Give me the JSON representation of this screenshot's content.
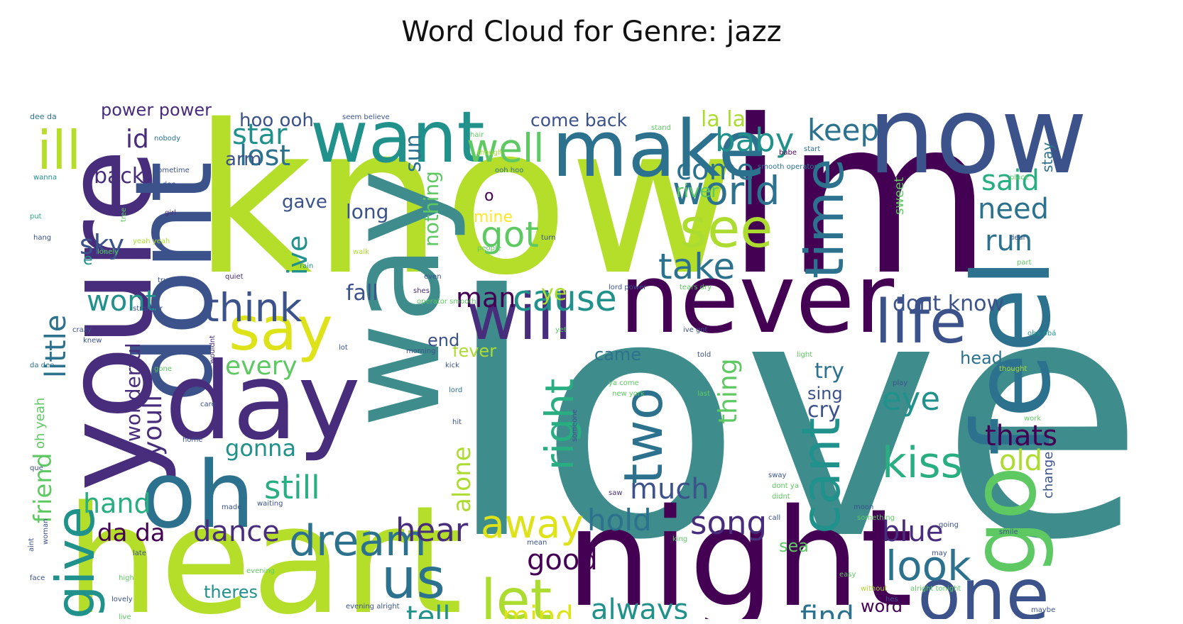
{
  "chart_data": {
    "type": "wordcloud",
    "title": "Word Cloud for Genre: jazz",
    "palette": [
      "#440154",
      "#472d7b",
      "#3b528b",
      "#2c728e",
      "#21918c",
      "#28ae80",
      "#5ec962",
      "#addc30",
      "#fde725"
    ],
    "words": [
      {
        "text": "love",
        "weight": 100,
        "color": "#3e8c8c"
      },
      {
        "text": "know",
        "weight": 72,
        "color": "#b5de2b"
      },
      {
        "text": "im",
        "weight": 68,
        "color": "#440154"
      },
      {
        "text": "heart",
        "weight": 52,
        "color": "#b5de2b"
      },
      {
        "text": "night",
        "weight": 48,
        "color": "#440154"
      },
      {
        "text": "way",
        "weight": 45,
        "color": "#3e8c8c"
      },
      {
        "text": "youre",
        "weight": 42,
        "color": "#472d7b"
      },
      {
        "text": "now",
        "weight": 38,
        "color": "#3b528b"
      },
      {
        "text": "dont",
        "weight": 37,
        "color": "#3b528b"
      },
      {
        "text": "day",
        "weight": 36,
        "color": "#472d7b"
      },
      {
        "text": "feel",
        "weight": 34,
        "color": "#2c728e"
      },
      {
        "text": "never",
        "weight": 32,
        "color": "#440154"
      },
      {
        "text": "oh",
        "weight": 30,
        "color": "#2c728e"
      },
      {
        "text": "go",
        "weight": 29,
        "color": "#5ec962"
      },
      {
        "text": "make",
        "weight": 27,
        "color": "#2c728e"
      },
      {
        "text": "want",
        "weight": 26,
        "color": "#21918c"
      },
      {
        "text": "one",
        "weight": 24,
        "color": "#3b528b"
      },
      {
        "text": "will",
        "weight": 22,
        "color": "#472d7b"
      },
      {
        "text": "life",
        "weight": 21,
        "color": "#3b528b"
      },
      {
        "text": "say",
        "weight": 21,
        "color": "#dde318"
      },
      {
        "text": "see",
        "weight": 20,
        "color": "#addc30"
      },
      {
        "text": "time",
        "weight": 20,
        "color": "#2c728e"
      },
      {
        "text": "cant",
        "weight": 20,
        "color": "#21918c"
      },
      {
        "text": "two",
        "weight": 20,
        "color": "#2c728e"
      },
      {
        "text": "us",
        "weight": 19,
        "color": "#2c728e"
      },
      {
        "text": "let",
        "weight": 19,
        "color": "#addc30"
      },
      {
        "text": "give",
        "weight": 18,
        "color": "#21918c"
      },
      {
        "text": "ill",
        "weight": 18,
        "color": "#b5de2b"
      },
      {
        "text": "kiss",
        "weight": 17,
        "color": "#28ae80"
      },
      {
        "text": "dream",
        "weight": 17,
        "color": "#2c728e"
      },
      {
        "text": "look",
        "weight": 16,
        "color": "#2c728e"
      },
      {
        "text": "world",
        "weight": 15,
        "color": "#2c728e"
      },
      {
        "text": "think",
        "weight": 15,
        "color": "#3b528b"
      },
      {
        "text": "well",
        "weight": 15,
        "color": "#5ec962"
      },
      {
        "text": "right",
        "weight": 15,
        "color": "#28ae80"
      },
      {
        "text": "away",
        "weight": 14,
        "color": "#dde318"
      },
      {
        "text": "cause",
        "weight": 14,
        "color": "#21918c"
      },
      {
        "text": "take",
        "weight": 14,
        "color": "#2c728e"
      },
      {
        "text": "still",
        "weight": 13,
        "color": "#28ae80"
      },
      {
        "text": "got",
        "weight": 13,
        "color": "#5ec962"
      },
      {
        "text": "hear",
        "weight": 13,
        "color": "#472d7b"
      },
      {
        "text": "keep",
        "weight": 13,
        "color": "#2c728e"
      },
      {
        "text": "baby",
        "weight": 13,
        "color": "#21918c"
      },
      {
        "text": "eye",
        "weight": 13,
        "color": "#21918c"
      },
      {
        "text": "wont",
        "weight": 12,
        "color": "#21918c"
      },
      {
        "text": "dance",
        "weight": 12,
        "color": "#472d7b"
      },
      {
        "text": "song",
        "weight": 12,
        "color": "#472d7b"
      },
      {
        "text": "hold",
        "weight": 12,
        "color": "#2c728e"
      },
      {
        "text": "much",
        "weight": 12,
        "color": "#3b528b"
      },
      {
        "text": "always",
        "weight": 12,
        "color": "#21918c"
      },
      {
        "text": "blue",
        "weight": 12,
        "color": "#472d7b"
      },
      {
        "text": "good",
        "weight": 12,
        "color": "#440154"
      },
      {
        "text": "find",
        "weight": 11,
        "color": "#2c728e"
      },
      {
        "text": "tell",
        "weight": 11,
        "color": "#21918c"
      },
      {
        "text": "mind",
        "weight": 11,
        "color": "#dde318"
      },
      {
        "text": "little",
        "weight": 11,
        "color": "#2c728e"
      },
      {
        "text": "thats",
        "weight": 11,
        "color": "#440154"
      },
      {
        "text": "old",
        "weight": 11,
        "color": "#addc30"
      },
      {
        "text": "need",
        "weight": 11,
        "color": "#2c728e"
      },
      {
        "text": "said",
        "weight": 11,
        "color": "#28ae80"
      },
      {
        "text": "run",
        "weight": 11,
        "color": "#2c728e"
      },
      {
        "text": "lost",
        "weight": 11,
        "color": "#2c728e"
      },
      {
        "text": "star",
        "weight": 11,
        "color": "#21918c"
      },
      {
        "text": "come",
        "weight": 11,
        "color": "#2c728e"
      },
      {
        "text": "man",
        "weight": 11,
        "color": "#440154"
      },
      {
        "text": "ive",
        "weight": 10,
        "color": "#21918c"
      },
      {
        "text": "sky",
        "weight": 10,
        "color": "#3b528b"
      },
      {
        "text": "hand",
        "weight": 10,
        "color": "#28ae80"
      },
      {
        "text": "youll",
        "weight": 10,
        "color": "#472d7b"
      },
      {
        "text": "every",
        "weight": 10,
        "color": "#5ec962"
      },
      {
        "text": "thing",
        "weight": 10,
        "color": "#5ec962"
      },
      {
        "text": "alone",
        "weight": 10,
        "color": "#addc30"
      },
      {
        "text": "friend",
        "weight": 10,
        "color": "#5ec962"
      },
      {
        "text": "da da",
        "weight": 10,
        "color": "#440154"
      },
      {
        "text": "gonna",
        "weight": 9,
        "color": "#21918c"
      },
      {
        "text": "cry",
        "weight": 9,
        "color": "#3b528b"
      },
      {
        "text": "try",
        "weight": 9,
        "color": "#2c728e"
      },
      {
        "text": "id",
        "weight": 9,
        "color": "#472d7b"
      },
      {
        "text": "back",
        "weight": 9,
        "color": "#472d7b"
      },
      {
        "text": "wonderful",
        "weight": 9,
        "color": "#472d7b"
      },
      {
        "text": "dont know",
        "weight": 9,
        "color": "#3b528b"
      },
      {
        "text": "nothing",
        "weight": 9,
        "color": "#5ec962"
      },
      {
        "text": "sun",
        "weight": 9,
        "color": "#2c728e"
      },
      {
        "text": "fall",
        "weight": 9,
        "color": "#3b528b"
      },
      {
        "text": "ye",
        "weight": 9,
        "color": "#addc30"
      },
      {
        "text": "la la",
        "weight": 9,
        "color": "#addc30"
      },
      {
        "text": "long",
        "weight": 9,
        "color": "#3b528b"
      },
      {
        "text": "come back",
        "weight": 8,
        "color": "#3b528b"
      },
      {
        "text": "hoo ooh",
        "weight": 8,
        "color": "#3b528b"
      },
      {
        "text": "power power",
        "weight": 8,
        "color": "#472d7b"
      },
      {
        "text": "river",
        "weight": 8,
        "color": "#5ec962"
      },
      {
        "text": "gave",
        "weight": 8,
        "color": "#3b528b"
      },
      {
        "text": "arm",
        "weight": 8,
        "color": "#3b528b"
      },
      {
        "text": "came",
        "weight": 8,
        "color": "#2c728e"
      },
      {
        "text": "fever",
        "weight": 8,
        "color": "#addc30"
      },
      {
        "text": "end",
        "weight": 8,
        "color": "#3b528b"
      },
      {
        "text": "sing",
        "weight": 8,
        "color": "#3b528b"
      },
      {
        "text": "head",
        "weight": 8,
        "color": "#2c728e"
      },
      {
        "text": "word",
        "weight": 8,
        "color": "#440154"
      },
      {
        "text": "theres",
        "weight": 8,
        "color": "#21918c"
      },
      {
        "text": "sea",
        "weight": 7,
        "color": "#5ec962"
      },
      {
        "text": "o",
        "weight": 7,
        "color": "#440154"
      },
      {
        "text": "mine",
        "weight": 7,
        "color": "#fde725"
      },
      {
        "text": "e",
        "weight": 7,
        "color": "#21918c"
      },
      {
        "text": "stay",
        "weight": 6,
        "color": "#2c728e"
      },
      {
        "text": "sweet",
        "weight": 6,
        "color": "#5ec962"
      },
      {
        "text": "change",
        "weight": 6,
        "color": "#3b528b"
      },
      {
        "text": "oh yeah",
        "weight": 6,
        "color": "#5ec962"
      },
      {
        "text": "dee da",
        "weight": 4,
        "color": "#2c728e"
      },
      {
        "text": "nobody",
        "weight": 4,
        "color": "#2c728e"
      },
      {
        "text": "seem believe",
        "weight": 4,
        "color": "#3b528b"
      },
      {
        "text": "hair",
        "weight": 4,
        "color": "#5ec962"
      },
      {
        "text": "stand",
        "weight": 4,
        "color": "#5ec962"
      },
      {
        "text": "though",
        "weight": 4,
        "color": "#addc30"
      },
      {
        "text": "babe",
        "weight": 4,
        "color": "#440154"
      },
      {
        "text": "start",
        "weight": 4,
        "color": "#2c728e"
      },
      {
        "text": "smooth operator",
        "weight": 4,
        "color": "#2c728e"
      },
      {
        "text": "wanna",
        "weight": 4,
        "color": "#21918c"
      },
      {
        "text": "sometime",
        "weight": 4,
        "color": "#3b528b"
      },
      {
        "text": "ooh hoo",
        "weight": 4,
        "color": "#2c728e"
      },
      {
        "text": "place",
        "weight": 4,
        "color": "#5ec962"
      },
      {
        "text": "dee dee",
        "weight": 4,
        "color": "#3b528b"
      },
      {
        "text": "tree",
        "weight": 4,
        "color": "#5ec962"
      },
      {
        "text": "put",
        "weight": 4,
        "color": "#28ae80"
      },
      {
        "text": "girl",
        "weight": 4,
        "color": "#472d7b"
      },
      {
        "text": "hang",
        "weight": 4,
        "color": "#3b528b"
      },
      {
        "text": "yeah yeah",
        "weight": 4,
        "color": "#addc30"
      },
      {
        "text": "walk",
        "weight": 4,
        "color": "#addc30"
      },
      {
        "text": "turn",
        "weight": 4,
        "color": "#3b528b"
      },
      {
        "text": "people",
        "weight": 4,
        "color": "#5ec962"
      },
      {
        "text": "dear",
        "weight": 4,
        "color": "#3b528b"
      },
      {
        "text": "lonely",
        "weight": 4,
        "color": "#5ec962"
      },
      {
        "text": "rain",
        "weight": 4,
        "color": "#21918c"
      },
      {
        "text": "true",
        "weight": 4,
        "color": "#3b528b"
      },
      {
        "text": "quiet",
        "weight": 4,
        "color": "#472d7b"
      },
      {
        "text": "part",
        "weight": 4,
        "color": "#5ec962"
      },
      {
        "text": "stronger",
        "weight": 4,
        "color": "#3b528b"
      },
      {
        "text": "shes",
        "weight": 4,
        "color": "#472d7b"
      },
      {
        "text": "even",
        "weight": 4,
        "color": "#3b528b"
      },
      {
        "text": "operator smooth",
        "weight": 4,
        "color": "#5ec962"
      },
      {
        "text": "lord power",
        "weight": 4,
        "color": "#3b528b"
      },
      {
        "text": "tears dry",
        "weight": 4,
        "color": "#5ec962"
      },
      {
        "text": "crazy",
        "weight": 4,
        "color": "#3b528b"
      },
      {
        "text": "knew",
        "weight": 4,
        "color": "#3b528b"
      },
      {
        "text": "wouldnt",
        "weight": 4,
        "color": "#472d7b"
      },
      {
        "text": "lot",
        "weight": 4,
        "color": "#3b528b"
      },
      {
        "text": "morning",
        "weight": 4,
        "color": "#3b528b"
      },
      {
        "text": "ive got",
        "weight": 4,
        "color": "#3b528b"
      },
      {
        "text": "obá obá",
        "weight": 4,
        "color": "#21918c"
      },
      {
        "text": "told",
        "weight": 4,
        "color": "#3b528b"
      },
      {
        "text": "light",
        "weight": 4,
        "color": "#5ec962"
      },
      {
        "text": "thought",
        "weight": 4,
        "color": "#addc30"
      },
      {
        "text": "yet",
        "weight": 4,
        "color": "#5ec962"
      },
      {
        "text": "da dee",
        "weight": 4,
        "color": "#2c728e"
      },
      {
        "text": "gone",
        "weight": 4,
        "color": "#5ec962"
      },
      {
        "text": "kick",
        "weight": 4,
        "color": "#3b528b"
      },
      {
        "text": "lord",
        "weight": 4,
        "color": "#2c728e"
      },
      {
        "text": "play",
        "weight": 4,
        "color": "#3b528b"
      },
      {
        "text": "ya come",
        "weight": 4,
        "color": "#5ec962"
      },
      {
        "text": "new york",
        "weight": 4,
        "color": "#5ec962"
      },
      {
        "text": "care",
        "weight": 4,
        "color": "#3b528b"
      },
      {
        "text": "last",
        "weight": 4,
        "color": "#5ec962"
      },
      {
        "text": "hit",
        "weight": 4,
        "color": "#3b528b"
      },
      {
        "text": "someone",
        "weight": 4,
        "color": "#3b528b"
      },
      {
        "text": "work",
        "weight": 4,
        "color": "#5ec962"
      },
      {
        "text": "home",
        "weight": 4,
        "color": "#3b528b"
      },
      {
        "text": "que",
        "weight": 4,
        "color": "#3b528b"
      },
      {
        "text": "sway",
        "weight": 4,
        "color": "#3b528b"
      },
      {
        "text": "dont ya",
        "weight": 4,
        "color": "#5ec962"
      },
      {
        "text": "didnt",
        "weight": 4,
        "color": "#5ec962"
      },
      {
        "text": "saw",
        "weight": 4,
        "color": "#472d7b"
      },
      {
        "text": "made",
        "weight": 4,
        "color": "#3b528b"
      },
      {
        "text": "waiting",
        "weight": 4,
        "color": "#3b528b"
      },
      {
        "text": "call",
        "weight": 4,
        "color": "#3b528b"
      },
      {
        "text": "moon",
        "weight": 4,
        "color": "#3b528b"
      },
      {
        "text": "something",
        "weight": 4,
        "color": "#5ec962"
      },
      {
        "text": "late",
        "weight": 4,
        "color": "#3b528b"
      },
      {
        "text": "going",
        "weight": 4,
        "color": "#3b528b"
      },
      {
        "text": "smile",
        "weight": 4,
        "color": "#3b528b"
      },
      {
        "text": "king",
        "weight": 4,
        "color": "#5ec962"
      },
      {
        "text": "mean",
        "weight": 4,
        "color": "#3b528b"
      },
      {
        "text": "woman",
        "weight": 4,
        "color": "#3b528b"
      },
      {
        "text": "aint",
        "weight": 4,
        "color": "#3b528b"
      },
      {
        "text": "may",
        "weight": 4,
        "color": "#3b528b"
      },
      {
        "text": "face",
        "weight": 4,
        "color": "#3b528b"
      },
      {
        "text": "high",
        "weight": 4,
        "color": "#5ec962"
      },
      {
        "text": "evening",
        "weight": 4,
        "color": "#5ec962"
      },
      {
        "text": "easy",
        "weight": 4,
        "color": "#5ec962"
      },
      {
        "text": "without",
        "weight": 4,
        "color": "#addc30"
      },
      {
        "text": "alright tonight",
        "weight": 4,
        "color": "#5ec962"
      },
      {
        "text": "lovely",
        "weight": 4,
        "color": "#3b528b"
      },
      {
        "text": "hes",
        "weight": 4,
        "color": "#3b528b"
      },
      {
        "text": "live",
        "weight": 4,
        "color": "#5ec962"
      },
      {
        "text": "evening alright",
        "weight": 4,
        "color": "#3b528b"
      },
      {
        "text": "heaven",
        "weight": 4,
        "color": "#5ec962"
      },
      {
        "text": "thrill",
        "weight": 4,
        "color": "#addc30"
      },
      {
        "text": "maybe",
        "weight": 4,
        "color": "#3b528b"
      }
    ]
  }
}
